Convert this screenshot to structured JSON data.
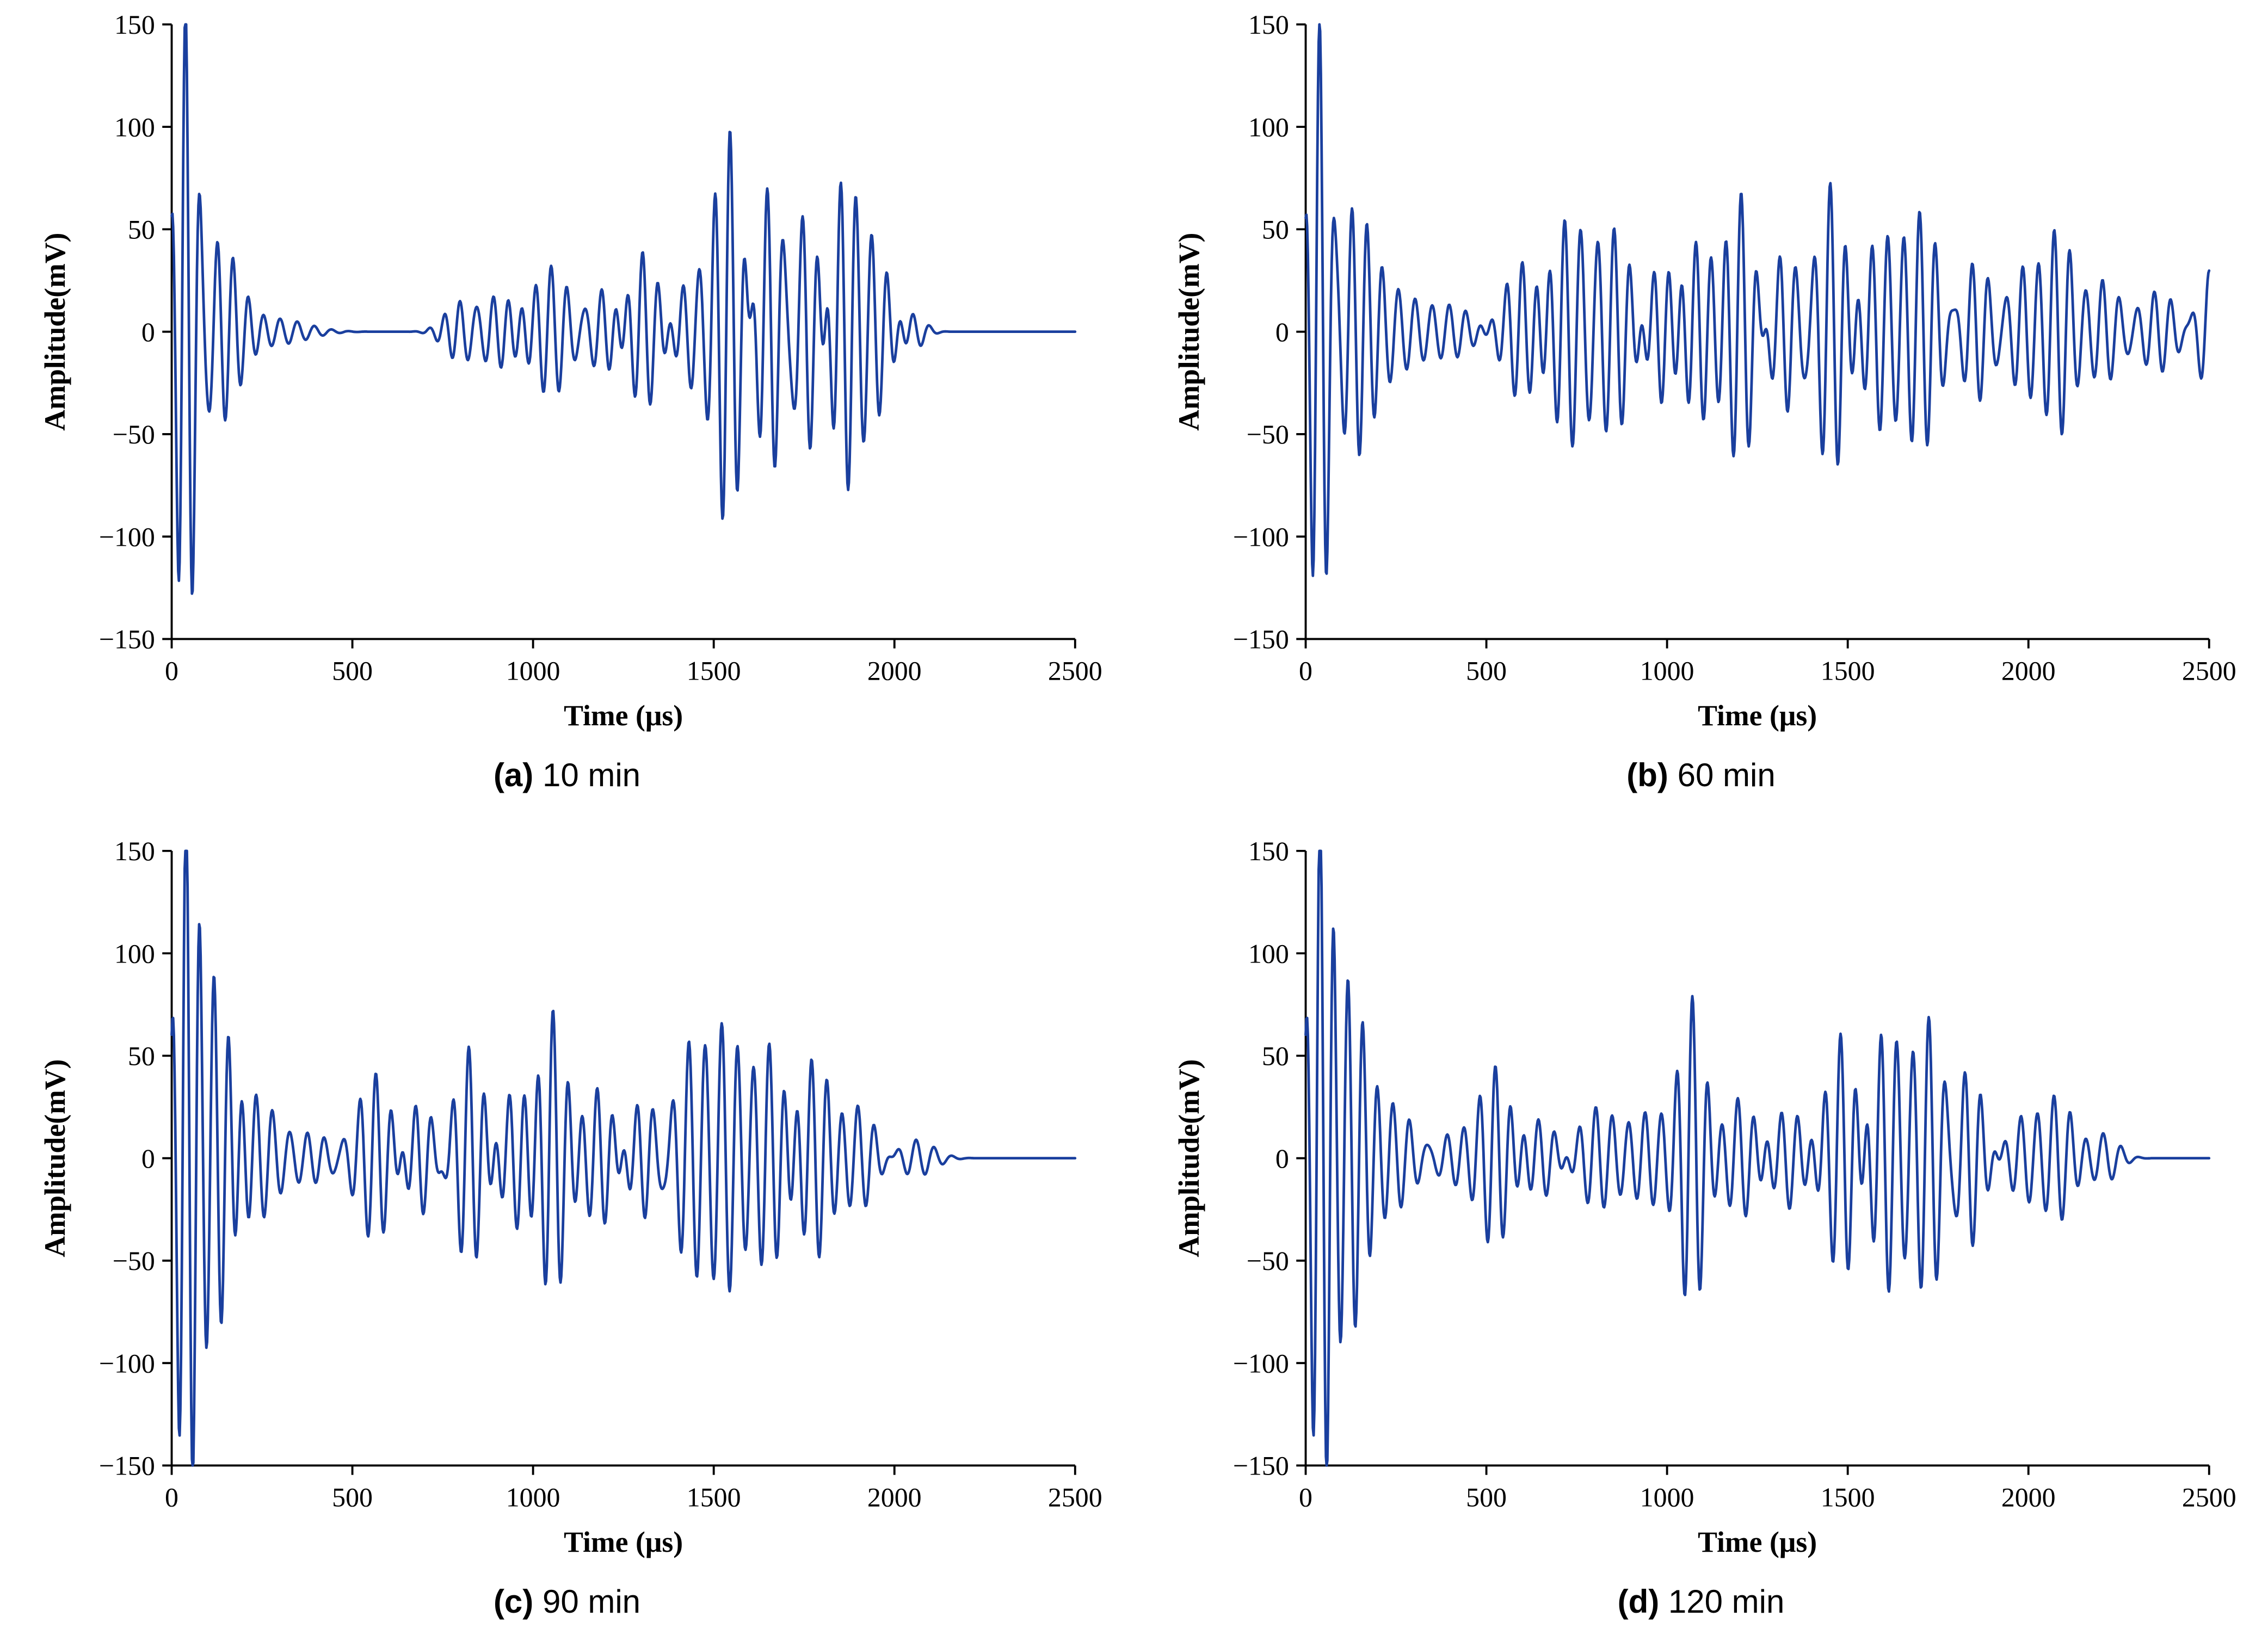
{
  "figure": {
    "description": "Four time-domain ultrasonic waveform plots at different curing times",
    "line_color": "#1a3f9e"
  },
  "chart_data": [
    {
      "type": "line",
      "caption_label": "(a)",
      "caption_text": "10 min",
      "xlabel": "Time (μs)",
      "ylabel": "Amplitude(mV)",
      "xlim": [
        0,
        2500
      ],
      "ylim": [
        -150,
        150
      ],
      "xticks": [
        0,
        500,
        1000,
        1500,
        2000,
        2500
      ],
      "yticks": [
        -150,
        -100,
        -50,
        0,
        50,
        100,
        150
      ],
      "grid": false,
      "legend": "none",
      "line_color": "#1a3f9e",
      "signal_model": {
        "sample_step": 2,
        "packets": [
          {
            "c": 38,
            "w": 38,
            "a": 150,
            "f": 0.026,
            "ph": 0
          },
          {
            "c": 135,
            "w": 75,
            "a": 45,
            "f": 0.023,
            "ph": 1.2
          },
          {
            "c": 300,
            "w": 110,
            "a": 6,
            "f": 0.021,
            "ph": 0
          },
          {
            "c": 800,
            "w": 60,
            "a": 15,
            "f": 0.024,
            "ph": 0.5
          },
          {
            "c": 905,
            "w": 75,
            "a": 18,
            "f": 0.024,
            "ph": 2.1
          },
          {
            "c": 1050,
            "w": 70,
            "a": 32,
            "f": 0.023,
            "ph": 0
          },
          {
            "c": 1200,
            "w": 60,
            "a": 22,
            "f": 0.023,
            "ph": 1.4
          },
          {
            "c": 1305,
            "w": 60,
            "a": 40,
            "f": 0.023,
            "ph": 0.3
          },
          {
            "c": 1430,
            "w": 50,
            "a": 25,
            "f": 0.023,
            "ph": 2.2
          },
          {
            "c": 1545,
            "w": 60,
            "a": 105,
            "f": 0.024,
            "ph": 0
          },
          {
            "c": 1655,
            "w": 70,
            "a": 80,
            "f": 0.024,
            "ph": 1.1
          },
          {
            "c": 1760,
            "w": 70,
            "a": 72,
            "f": 0.024,
            "ph": 2.0
          },
          {
            "c": 1855,
            "w": 60,
            "a": 85,
            "f": 0.024,
            "ph": 0.6
          },
          {
            "c": 1950,
            "w": 55,
            "a": 38,
            "f": 0.024,
            "ph": 1.8
          },
          {
            "c": 2050,
            "w": 45,
            "a": 9,
            "f": 0.021,
            "ph": 0
          }
        ]
      }
    },
    {
      "type": "line",
      "caption_label": "(b)",
      "caption_text": "60 min",
      "xlabel": "Time (μs)",
      "ylabel": "Amplitude(mV)",
      "xlim": [
        0,
        2500
      ],
      "ylim": [
        -150,
        150
      ],
      "xticks": [
        0,
        500,
        1000,
        1500,
        2000,
        2500
      ],
      "yticks": [
        -150,
        -100,
        -50,
        0,
        50,
        100,
        150
      ],
      "grid": false,
      "legend": "none",
      "line_color": "#1a3f9e",
      "signal_model": {
        "sample_step": 2,
        "packets": [
          {
            "c": 38,
            "w": 38,
            "a": 148,
            "f": 0.026,
            "ph": 0
          },
          {
            "c": 135,
            "w": 70,
            "a": 60,
            "f": 0.024,
            "ph": 1.0
          },
          {
            "c": 260,
            "w": 90,
            "a": 18,
            "f": 0.022,
            "ph": 0.4
          },
          {
            "c": 410,
            "w": 80,
            "a": 12,
            "f": 0.022,
            "ph": 1.7
          },
          {
            "c": 600,
            "w": 70,
            "a": 35,
            "f": 0.023,
            "ph": 0
          },
          {
            "c": 725,
            "w": 70,
            "a": 55,
            "f": 0.023,
            "ph": 1.3
          },
          {
            "c": 855,
            "w": 80,
            "a": 50,
            "f": 0.023,
            "ph": 0.2
          },
          {
            "c": 980,
            "w": 60,
            "a": 40,
            "f": 0.023,
            "ph": 2.4
          },
          {
            "c": 1085,
            "w": 60,
            "a": 45,
            "f": 0.023,
            "ph": 0.8
          },
          {
            "c": 1205,
            "w": 55,
            "a": 68,
            "f": 0.023,
            "ph": 0
          },
          {
            "c": 1325,
            "w": 60,
            "a": 40,
            "f": 0.023,
            "ph": 1.9
          },
          {
            "c": 1455,
            "w": 55,
            "a": 73,
            "f": 0.023,
            "ph": 0.5
          },
          {
            "c": 1585,
            "w": 60,
            "a": 45,
            "f": 0.023,
            "ph": 2.6
          },
          {
            "c": 1705,
            "w": 70,
            "a": 58,
            "f": 0.023,
            "ph": 0.9
          },
          {
            "c": 1855,
            "w": 60,
            "a": 35,
            "f": 0.023,
            "ph": 1.5
          },
          {
            "c": 1985,
            "w": 55,
            "a": 30,
            "f": 0.023,
            "ph": 0.1
          },
          {
            "c": 2085,
            "w": 55,
            "a": 50,
            "f": 0.023,
            "ph": 2.0
          },
          {
            "c": 2210,
            "w": 60,
            "a": 25,
            "f": 0.022,
            "ph": 0.7
          },
          {
            "c": 2360,
            "w": 70,
            "a": 20,
            "f": 0.022,
            "ph": 1.6
          },
          {
            "c": 2500,
            "w": 45,
            "a": 30,
            "f": 0.022,
            "ph": 0
          }
        ]
      }
    },
    {
      "type": "line",
      "caption_label": "(c)",
      "caption_text": "90 min",
      "xlabel": "Time (μs)",
      "ylabel": "Amplitude(mV)",
      "xlim": [
        0,
        2500
      ],
      "ylim": [
        -150,
        150
      ],
      "xticks": [
        0,
        500,
        1000,
        1500,
        2000,
        2500
      ],
      "yticks": [
        -150,
        -100,
        -50,
        0,
        50,
        100,
        150
      ],
      "grid": false,
      "legend": "none",
      "line_color": "#1a3f9e",
      "signal_model": {
        "sample_step": 2,
        "packets": [
          {
            "c": 40,
            "w": 40,
            "a": 168,
            "f": 0.026,
            "ph": 0
          },
          {
            "c": 125,
            "w": 60,
            "a": 90,
            "f": 0.024,
            "ph": 1.2
          },
          {
            "c": 235,
            "w": 80,
            "a": 30,
            "f": 0.022,
            "ph": 0.3
          },
          {
            "c": 390,
            "w": 80,
            "a": 12,
            "f": 0.022,
            "ph": 1.9
          },
          {
            "c": 565,
            "w": 70,
            "a": 42,
            "f": 0.023,
            "ph": 0
          },
          {
            "c": 685,
            "w": 60,
            "a": 30,
            "f": 0.023,
            "ph": 1.5
          },
          {
            "c": 825,
            "w": 60,
            "a": 55,
            "f": 0.023,
            "ph": 0.4
          },
          {
            "c": 950,
            "w": 60,
            "a": 35,
            "f": 0.023,
            "ph": 2.3
          },
          {
            "c": 1055,
            "w": 50,
            "a": 72,
            "f": 0.023,
            "ph": 0
          },
          {
            "c": 1185,
            "w": 60,
            "a": 35,
            "f": 0.023,
            "ph": 1.1
          },
          {
            "c": 1305,
            "w": 60,
            "a": 30,
            "f": 0.023,
            "ph": 2.5
          },
          {
            "c": 1435,
            "w": 60,
            "a": 55,
            "f": 0.023,
            "ph": 0.6
          },
          {
            "c": 1535,
            "w": 60,
            "a": 63,
            "f": 0.023,
            "ph": 1.8
          },
          {
            "c": 1655,
            "w": 60,
            "a": 55,
            "f": 0.023,
            "ph": 0.2
          },
          {
            "c": 1780,
            "w": 60,
            "a": 50,
            "f": 0.023,
            "ph": 1.4
          },
          {
            "c": 1905,
            "w": 60,
            "a": 25,
            "f": 0.022,
            "ph": 0.9
          },
          {
            "c": 2060,
            "w": 70,
            "a": 9,
            "f": 0.02,
            "ph": 0
          }
        ]
      }
    },
    {
      "type": "line",
      "caption_label": "(d)",
      "caption_text": "120 min",
      "xlabel": "Time (μs)",
      "ylabel": "Amplitude(mV)",
      "xlim": [
        0,
        2500
      ],
      "ylim": [
        -150,
        150
      ],
      "xticks": [
        0,
        500,
        1000,
        1500,
        2000,
        2500
      ],
      "yticks": [
        -150,
        -100,
        -50,
        0,
        50,
        100,
        150
      ],
      "grid": false,
      "legend": "none",
      "line_color": "#1a3f9e",
      "signal_model": {
        "sample_step": 2,
        "packets": [
          {
            "c": 40,
            "w": 40,
            "a": 168,
            "f": 0.026,
            "ph": 0
          },
          {
            "c": 125,
            "w": 60,
            "a": 85,
            "f": 0.024,
            "ph": 1.2
          },
          {
            "c": 245,
            "w": 80,
            "a": 25,
            "f": 0.022,
            "ph": 0.5
          },
          {
            "c": 405,
            "w": 70,
            "a": 12,
            "f": 0.022,
            "ph": 1.8
          },
          {
            "c": 525,
            "w": 60,
            "a": 45,
            "f": 0.023,
            "ph": 0
          },
          {
            "c": 655,
            "w": 70,
            "a": 20,
            "f": 0.022,
            "ph": 1.6
          },
          {
            "c": 805,
            "w": 80,
            "a": 25,
            "f": 0.022,
            "ph": 0.3
          },
          {
            "c": 955,
            "w": 70,
            "a": 22,
            "f": 0.022,
            "ph": 2.2
          },
          {
            "c": 1070,
            "w": 48,
            "a": 78,
            "f": 0.023,
            "ph": 0
          },
          {
            "c": 1205,
            "w": 60,
            "a": 30,
            "f": 0.022,
            "ph": 1.3
          },
          {
            "c": 1335,
            "w": 60,
            "a": 25,
            "f": 0.022,
            "ph": 2.6
          },
          {
            "c": 1485,
            "w": 60,
            "a": 62,
            "f": 0.023,
            "ph": 0.7
          },
          {
            "c": 1605,
            "w": 60,
            "a": 65,
            "f": 0.023,
            "ph": 1.9
          },
          {
            "c": 1725,
            "w": 60,
            "a": 68,
            "f": 0.023,
            "ph": 0.1
          },
          {
            "c": 1835,
            "w": 55,
            "a": 45,
            "f": 0.023,
            "ph": 1.5
          },
          {
            "c": 1985,
            "w": 60,
            "a": 20,
            "f": 0.022,
            "ph": 0.8
          },
          {
            "c": 2085,
            "w": 55,
            "a": 30,
            "f": 0.022,
            "ph": 2.0
          },
          {
            "c": 2210,
            "w": 55,
            "a": 12,
            "f": 0.02,
            "ph": 0.4
          }
        ]
      }
    }
  ]
}
